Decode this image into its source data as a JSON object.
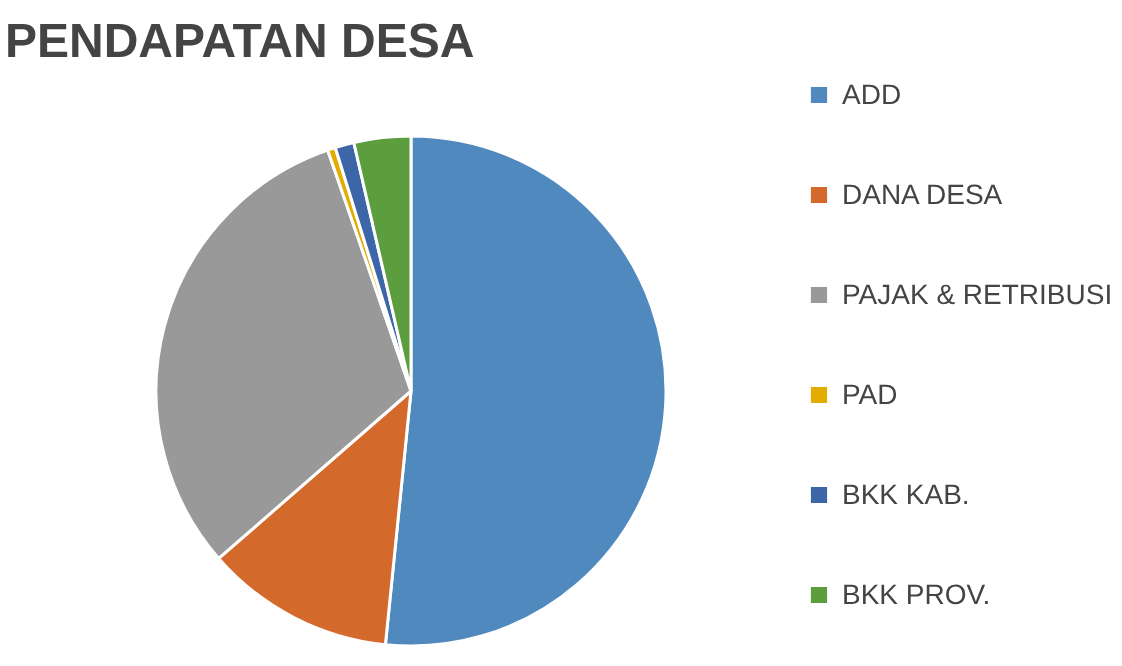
{
  "chart_data": {
    "type": "pie",
    "title": "PENDAPATAN DESA",
    "categories": [
      "ADD",
      "DANA DESA",
      "PAJAK & RETRIBUSI",
      "PAD",
      "BKK KAB.",
      "BKK PROV."
    ],
    "values": [
      51.6,
      12.0,
      31.1,
      0.5,
      1.2,
      3.6
    ],
    "colors": [
      "#4f89bd",
      "#d4692c",
      "#999999",
      "#e3ac00",
      "#3c66a8",
      "#5c9d3e"
    ],
    "legend": "right"
  }
}
